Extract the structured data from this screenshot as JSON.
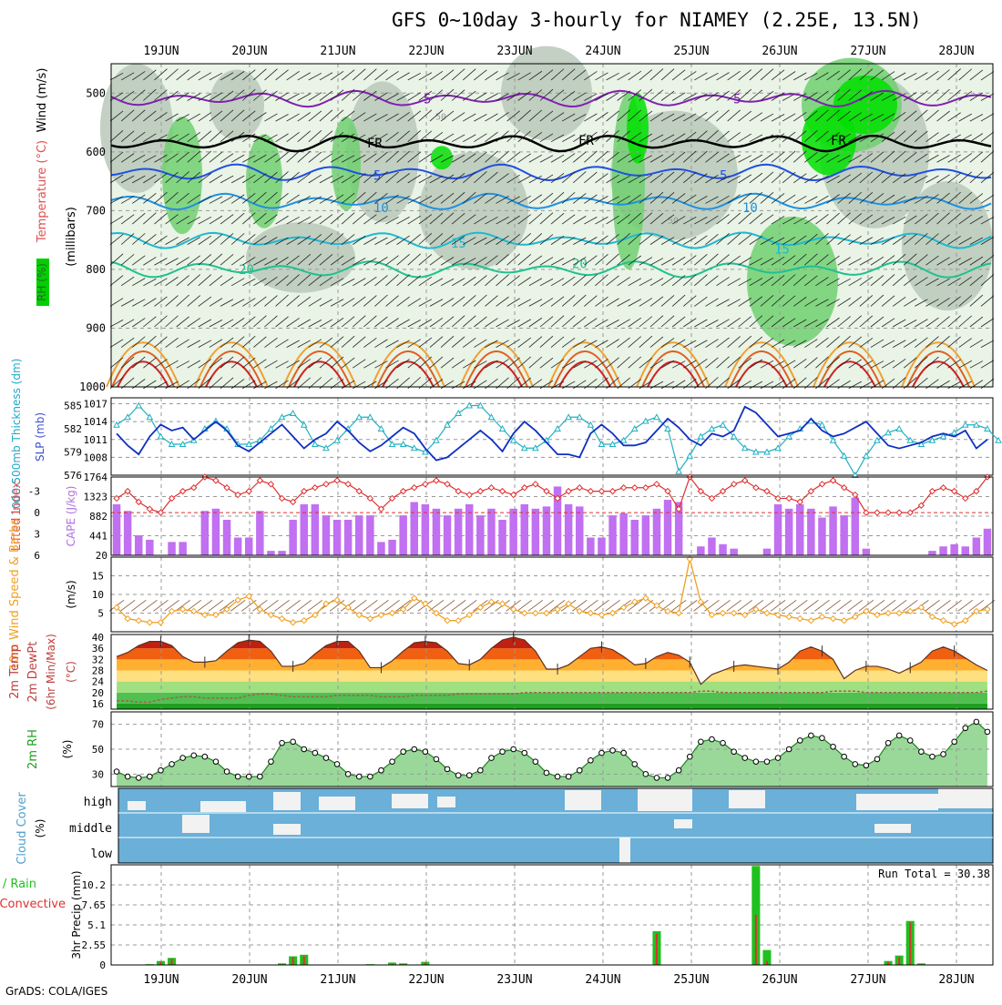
{
  "header": {
    "title": "GFS 0~10day 3-hourly for NIAMEY (2.25E, 13.5N)",
    "credit": "GrADS: COLA/IGES"
  },
  "colors": {
    "rh_green": "#00e000",
    "rh_mid": "#70d070",
    "rh_gray": "#b8c8b8",
    "slp_line": "#1030c0",
    "thickness_line": "#20b0c0",
    "lifted_index": "#e03030",
    "cape_bar": "#c070f0",
    "wind_speed": "#f0a020",
    "rh_area": "#30c030",
    "cloud_blue": "#6ab0d8",
    "rain_total": "#20c020",
    "rain_conv": "#e03030"
  },
  "chart_data": [
    {
      "type": "heatmap",
      "name": "meteogram-cross-section",
      "x_tick_labels": [
        "19JUN",
        "20JUN",
        "21JUN",
        "22JUN",
        "23JUN",
        "24JUN",
        "25JUN",
        "26JUN",
        "27JUN",
        "28JUN"
      ],
      "ylabel": "Wind (m/s)",
      "ylabel_parts": [
        "RH (%)",
        "Temperature (°C)",
        "Wind (m/s)",
        "(millibars)"
      ],
      "y_ticks": [
        500,
        600,
        700,
        800,
        900,
        1000
      ],
      "ylim": [
        1000,
        450
      ],
      "temperature_contours": [
        {
          "label": "5",
          "color": "#8020b0",
          "level_mb": 510
        },
        {
          "label": "FR",
          "color": "#000000",
          "level_mb": 585
        },
        {
          "label": "5",
          "color": "#2050e0",
          "level_mb": 635
        },
        {
          "label": "10",
          "color": "#2090e0",
          "level_mb": 685
        },
        {
          "label": "15",
          "color": "#20b8d0",
          "level_mb": 750
        },
        {
          "label": "20",
          "color": "#20c090",
          "level_mb": 800
        }
      ],
      "rh_labels": [
        "50"
      ]
    },
    {
      "type": "line",
      "name": "slp-thickness",
      "y_left_label": "1000-500mb Thickness (dm)",
      "y_right_label": "SLP (mb)",
      "y_left_ticks": [
        576,
        579,
        582,
        585
      ],
      "y_right_ticks": [
        1008,
        1011,
        1014,
        1017
      ],
      "ylim_left": [
        576,
        586
      ],
      "ylim_right": [
        1005,
        1018
      ],
      "series": [
        {
          "name": "SLP (mb)",
          "axis": "right",
          "color": "#1030c0",
          "values": [
            1012,
            1010,
            1008.5,
            1011.5,
            1013.5,
            1012.5,
            1013,
            1011,
            1012.5,
            1014,
            1012.5,
            1010,
            1009,
            1010.5,
            1012,
            1013.5,
            1011.5,
            1009.5,
            1011,
            1012,
            1014,
            1012.5,
            1010.5,
            1009,
            1010,
            1011.5,
            1013,
            1012,
            1009.5,
            1007.5,
            1008,
            1009.5,
            1011,
            1012.5,
            1011,
            1009,
            1012,
            1014,
            1012.5,
            1010.5,
            1008.5,
            1008.5,
            1008,
            1012,
            1013.5,
            1012,
            1010,
            1010,
            1010.5,
            1012.5,
            1014.5,
            1013,
            1011,
            1010,
            1012,
            1011.5,
            1012.5,
            1016.5,
            1015.5,
            1013.5,
            1011.5,
            1012,
            1012.5,
            1014.5,
            1012.5,
            1011.5,
            1012,
            1013,
            1014,
            1012,
            1010,
            1009.5,
            1010,
            1010.5,
            1011.5,
            1012,
            1011.5,
            1012.5,
            1009.5,
            1011
          ]
        },
        {
          "name": "1000-500mb Thickness (dm)",
          "axis": "left",
          "color": "#20b0c0",
          "values": [
            582.5,
            583.5,
            585,
            583.5,
            581,
            580,
            580,
            580.5,
            582,
            583,
            582,
            580,
            580,
            580.5,
            582,
            583.5,
            584,
            582.5,
            580,
            579.5,
            580.5,
            582,
            583.5,
            583.5,
            582,
            580,
            580,
            579.5,
            579,
            580.5,
            582.5,
            584,
            585,
            585,
            583.5,
            582,
            580.5,
            579.5,
            579.5,
            580.5,
            582,
            583.5,
            583.5,
            582.5,
            580,
            580,
            580.5,
            582,
            583,
            583.5,
            582,
            576.5,
            578.5,
            581,
            582,
            582.5,
            581,
            579.5,
            579,
            579,
            579.5,
            581,
            582,
            583,
            582.5,
            580.5,
            578.5,
            576,
            578.5,
            580.5,
            581.5,
            582,
            580.5,
            580,
            580.5,
            581,
            581.5,
            582.5,
            582.5,
            582,
            580.5
          ]
        }
      ]
    },
    {
      "type": "bar",
      "name": "cape-lifted-index",
      "y_left_label": "Lifted Index",
      "y_right_label": "CAPE (J/kg)",
      "y_left_ticks": [
        -3,
        0,
        3,
        6
      ],
      "y_right_ticks": [
        441,
        882,
        1323,
        1764
      ],
      "ylim_cape": [
        0,
        1764
      ],
      "ylim_li": [
        6,
        -5
      ],
      "series": [
        {
          "name": "CAPE (J/kg)",
          "color": "#c070f0",
          "values": [
            1150,
            1000,
            450,
            350,
            0,
            300,
            300,
            0,
            1000,
            1050,
            800,
            400,
            400,
            1000,
            100,
            100,
            800,
            1150,
            1150,
            900,
            800,
            800,
            900,
            900,
            300,
            350,
            900,
            1200,
            1150,
            1050,
            900,
            1050,
            1150,
            900,
            1050,
            800,
            1050,
            1150,
            1050,
            1100,
            1550,
            1150,
            1100,
            400,
            400,
            900,
            950,
            800,
            900,
            1050,
            1250,
            1200,
            0,
            200,
            400,
            250,
            150,
            0,
            0,
            150,
            1150,
            1050,
            1150,
            1050,
            850,
            1100,
            900,
            1300,
            150,
            0,
            0,
            0,
            0,
            0,
            100,
            200,
            250,
            200,
            400,
            600
          ]
        },
        {
          "name": "Lifted Index",
          "color": "#e03030",
          "values": [
            -2,
            -3,
            -1.5,
            -0.5,
            0,
            -2,
            -3,
            -3.5,
            -5,
            -4.5,
            -3.5,
            -2.5,
            -3,
            -4.5,
            -4,
            -2,
            -1.5,
            -3,
            -3.5,
            -4,
            -4.5,
            -4,
            -3,
            -2,
            -0.5,
            -2,
            -3,
            -3.5,
            -4,
            -4.5,
            -4,
            -3,
            -2.5,
            -3,
            -3.5,
            -3,
            -2.5,
            -3.5,
            -4,
            -3,
            -2,
            -3,
            -3.5,
            -3,
            -3,
            -3,
            -3.5,
            -3.5,
            -3.5,
            -4,
            -3,
            -0.5,
            -5,
            -3,
            -2,
            -3,
            -4,
            -4.5,
            -3.5,
            -3,
            -2,
            -2,
            -1.5,
            -3,
            -4,
            -4.5,
            -3.5,
            -2.5,
            0,
            0,
            0,
            0,
            0,
            -1,
            -3,
            -3.5,
            -3,
            -2,
            -3,
            -5
          ]
        }
      ]
    },
    {
      "type": "line",
      "name": "10m-wind",
      "ylabel": "10m Wind Speed & Barbs",
      "y_unit": "(m/s)",
      "y_ticks": [
        5,
        10,
        15,
        20
      ],
      "ylim": [
        0,
        20
      ],
      "series": [
        {
          "name": "10m Wind Speed",
          "color": "#f0a020",
          "values": [
            6.5,
            3.5,
            3,
            2.5,
            2.5,
            5.5,
            6,
            5.5,
            4.5,
            4.5,
            6,
            8.5,
            9.5,
            6,
            4.5,
            3.5,
            2.5,
            3,
            4.5,
            7.5,
            8.5,
            6.5,
            4.5,
            3.5,
            4.5,
            5,
            6,
            9,
            7.5,
            5,
            3,
            3,
            4.5,
            6.5,
            8,
            7.5,
            6,
            5,
            5,
            5,
            6,
            7.5,
            5.5,
            5,
            4.5,
            5,
            6.5,
            8,
            9,
            7,
            5.5,
            5,
            19.5,
            8,
            4.5,
            5,
            5,
            4.5,
            6,
            5,
            4.5,
            4,
            3.5,
            3,
            4,
            3.5,
            3,
            4,
            5.5,
            4.5,
            5,
            5,
            5.5,
            6.5,
            4,
            3,
            2,
            3,
            5.5,
            6
          ]
        }
      ]
    },
    {
      "type": "area",
      "name": "2m-temp-dewpoint",
      "ylabel": "2m Temp / 2m DewPt (6hr Min/Max) (°C)",
      "y_ticks": [
        16,
        20,
        24,
        28,
        32,
        36,
        40
      ],
      "ylim": [
        14,
        41
      ],
      "series": [
        {
          "name": "2m Temp",
          "color": "#c02010",
          "values": [
            33,
            34.5,
            37,
            38.5,
            38.5,
            37,
            33,
            31,
            31,
            31.5,
            35,
            38,
            39,
            38.5,
            35,
            29.5,
            29.5,
            30.5,
            34,
            37,
            38.5,
            38.5,
            35,
            29,
            29,
            31.5,
            35,
            38,
            38.5,
            38,
            35,
            30.5,
            30,
            32,
            36,
            39,
            40,
            39,
            35,
            28.5,
            28.5,
            30,
            33,
            36,
            36.5,
            35.5,
            33,
            30,
            30.5,
            33,
            34.5,
            33.5,
            31,
            23,
            26.5,
            28,
            29.5,
            30,
            29.5,
            29,
            28.5,
            31,
            35,
            36.5,
            35,
            32,
            25,
            28,
            29.5,
            29.5,
            28.5,
            27,
            29,
            31,
            35,
            36.5,
            35,
            32.5,
            30,
            28
          ]
        },
        {
          "name": "2m DewPt",
          "color": "#a06050",
          "values": [
            17,
            17,
            16.5,
            16.5,
            17.5,
            18,
            18.5,
            18.5,
            18,
            18,
            18,
            18,
            19,
            19.5,
            19.5,
            19,
            18.5,
            18.5,
            18.5,
            18.5,
            19,
            19,
            19,
            19,
            18.5,
            18.5,
            18.5,
            19,
            19,
            19,
            19,
            19.5,
            19.5,
            19.5,
            19.5,
            19.5,
            19.5,
            20,
            20,
            20,
            20,
            20,
            20,
            20,
            20,
            20,
            20,
            20,
            20,
            20,
            20,
            20,
            20,
            20.5,
            20.5,
            20,
            20,
            20,
            20,
            20,
            20,
            20,
            20,
            20,
            20,
            20.5,
            20.5,
            20.5,
            20,
            20,
            20,
            20,
            20,
            20,
            20,
            20,
            20,
            20,
            20,
            20.5
          ]
        }
      ]
    },
    {
      "type": "area",
      "name": "2m-rh",
      "ylabel": "2m RH",
      "y_unit": "(%)",
      "y_ticks": [
        30,
        50,
        70
      ],
      "ylim": [
        20,
        80
      ],
      "series": [
        {
          "name": "2m RH",
          "color": "#30c030",
          "values": [
            32,
            28,
            27,
            28,
            33,
            38,
            43,
            45,
            44,
            40,
            32,
            28,
            28,
            28,
            40,
            55,
            56,
            50,
            47,
            43,
            38,
            30,
            28,
            28,
            33,
            40,
            48,
            50,
            48,
            42,
            34,
            29,
            29,
            33,
            43,
            48,
            50,
            47,
            40,
            31,
            28,
            28,
            33,
            41,
            47,
            49,
            47,
            38,
            30,
            27,
            27,
            33,
            44,
            56,
            58,
            55,
            48,
            43,
            40,
            40,
            43,
            50,
            57,
            61,
            59,
            52,
            44,
            38,
            37,
            42,
            55,
            61,
            57,
            48,
            44,
            46,
            56,
            67,
            72,
            64
          ]
        }
      ]
    },
    {
      "type": "heatmap",
      "name": "cloud-cover",
      "ylabel": "Cloud Cover (%)",
      "row_labels": [
        "high",
        "middle",
        "low"
      ]
    },
    {
      "type": "bar",
      "name": "3hr-precip",
      "ylabel": "3hr Precip (mm)",
      "legend": [
        "Total / Rain",
        "Convective"
      ],
      "annotation": "Run Total = 30.38",
      "y_ticks": [
        0,
        2.55,
        5.1,
        7.65,
        10.2
      ],
      "ylim": [
        0,
        12.75
      ],
      "series": [
        {
          "name": "Total / Rain",
          "color": "#20c020",
          "values": [
            0,
            0,
            0,
            0.1,
            0.5,
            0.9,
            0,
            0,
            0,
            0,
            0,
            0,
            0,
            0,
            0,
            0.2,
            1.1,
            1.3,
            0,
            0,
            0,
            0,
            0,
            0.1,
            0,
            0.3,
            0.2,
            0,
            0.4,
            0,
            0,
            0,
            0,
            0,
            0,
            0,
            0,
            0,
            0,
            0,
            0,
            0,
            0,
            0,
            0,
            0,
            0,
            0,
            0,
            4.3,
            0,
            0,
            0,
            0,
            0,
            0,
            0,
            0,
            12.6,
            1.9,
            0,
            0,
            0,
            0,
            0,
            0,
            0,
            0,
            0,
            0,
            0.5,
            1.2,
            5.6,
            0.2,
            0,
            0,
            0,
            0,
            0,
            0
          ]
        },
        {
          "name": "Convective",
          "color": "#e03030",
          "values": [
            0,
            0,
            0,
            0.05,
            0.4,
            0.8,
            0,
            0,
            0,
            0,
            0,
            0,
            0,
            0,
            0,
            0.1,
            1,
            1.1,
            0,
            0,
            0,
            0,
            0,
            0.05,
            0,
            0.2,
            0.1,
            0,
            0.3,
            0,
            0,
            0,
            0,
            0,
            0,
            0,
            0,
            0,
            0,
            0,
            0,
            0,
            0,
            0,
            0,
            0,
            0,
            0,
            0,
            4,
            0,
            0,
            0,
            0,
            0,
            0,
            0,
            0,
            6.4,
            0.5,
            0,
            0,
            0,
            0,
            0,
            0,
            0,
            0,
            0,
            0,
            0.4,
            1,
            5.4,
            0.1,
            0,
            0,
            0,
            0,
            0,
            0
          ]
        }
      ]
    }
  ]
}
